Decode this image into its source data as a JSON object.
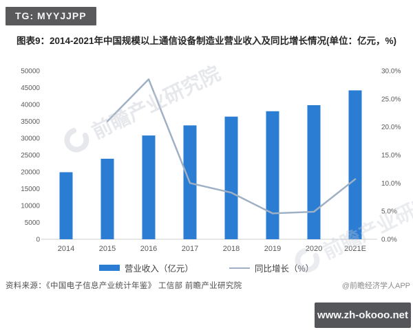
{
  "page": {
    "top_badge": "TG: MYYJJPP",
    "bottom_badge": "www.zh-okooo.net",
    "source_note": "资料来源：《中国电子信息产业统计年鉴》 工信部 前瞻产业研究院",
    "credit": "@前瞻经济学人APP",
    "watermark_text": "前瞻产业研究院"
  },
  "chart_data": {
    "type": "bar",
    "subtype": "bar+line combo, dual axis",
    "title": "图表9：2014-2021年中国规模以上通信设备制造业营业收入及同比增长情况(单位：亿元，%)",
    "categories": [
      "2014",
      "2015",
      "2016",
      "2017",
      "2018",
      "2019",
      "2020",
      "2021E"
    ],
    "series": [
      {
        "name": "营业收入（亿元）",
        "type": "bar",
        "axis": "left",
        "color": "#2b7cd3",
        "values": [
          19900,
          23900,
          30800,
          33800,
          36400,
          38000,
          39800,
          44200
        ]
      },
      {
        "name": "同比增长（%）",
        "type": "line",
        "axis": "right",
        "color": "#9fb0c4",
        "values": [
          null,
          21.0,
          28.5,
          10.0,
          8.3,
          4.6,
          4.9,
          10.7
        ]
      }
    ],
    "left_axis": {
      "min": 0,
      "max": 50000,
      "step": 5000
    },
    "right_axis": {
      "min": 0,
      "max": 30,
      "step": 5,
      "suffix": "%"
    },
    "grid": false,
    "legend_position": "bottom",
    "baseline_color": "#cccccc"
  }
}
